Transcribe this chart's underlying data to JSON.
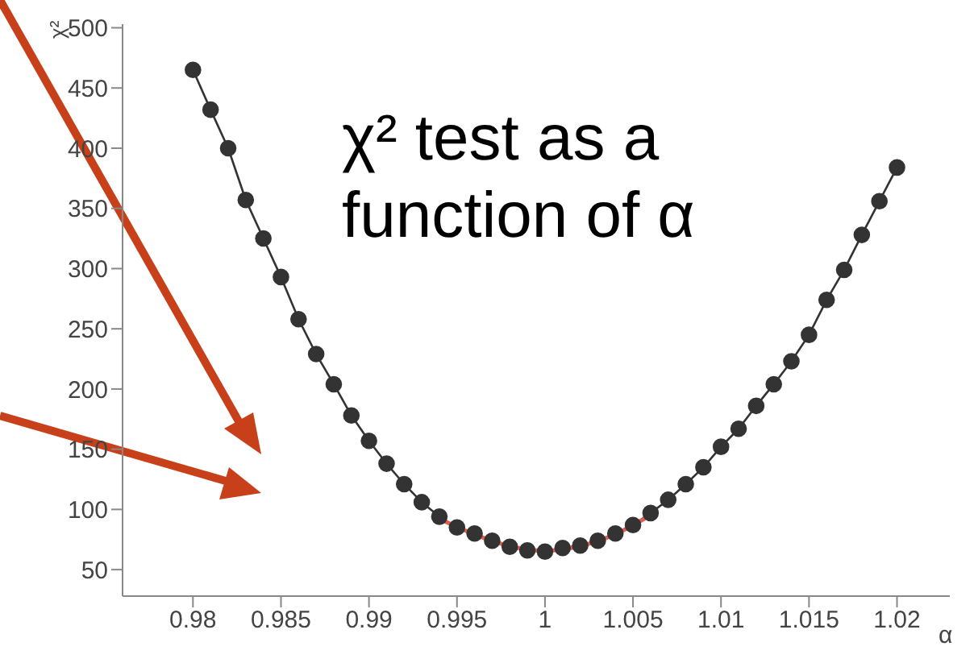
{
  "chart_data": {
    "type": "line",
    "xlabel": "α",
    "ylabel": "χ²",
    "annotations": [
      "χ² test as a function of α"
    ],
    "xlim": [
      0.976,
      1.023
    ],
    "ylim": [
      28,
      503
    ],
    "xticks": [
      0.98,
      0.985,
      0.99,
      0.995,
      1,
      1.005,
      1.01,
      1.015,
      1.02
    ],
    "yticks": [
      50,
      100,
      150,
      200,
      250,
      300,
      350,
      400,
      450,
      500
    ],
    "grid": false,
    "marker": "circle",
    "line_style": "solid",
    "series": [
      {
        "color": "#333333",
        "x": [
          0.98,
          0.981,
          0.982,
          0.983,
          0.984,
          0.985,
          0.986,
          0.987,
          0.988,
          0.989,
          0.99,
          0.991,
          0.992,
          0.993,
          0.994,
          0.995,
          0.996,
          0.997,
          0.998,
          0.999,
          1,
          1.001,
          1.002,
          1.003,
          1.004,
          1.005,
          1.006,
          1.007,
          1.008,
          1.009,
          1.01,
          1.011,
          1.012,
          1.013,
          1.014,
          1.015,
          1.016,
          1.017,
          1.018,
          1.019,
          1.02
        ],
        "values": [
          465,
          432,
          400,
          357,
          325,
          293,
          258,
          229,
          204,
          178,
          157,
          138,
          121,
          106,
          94,
          85,
          80,
          74,
          69,
          66,
          65,
          68,
          70,
          74,
          80,
          87,
          97,
          108,
          121,
          135,
          152,
          167,
          186,
          204,
          223,
          245,
          274,
          299,
          328,
          356,
          384
        ]
      },
      {
        "color": "#e06050",
        "marker": "none",
        "x": [
          0.994,
          0.996,
          0.998,
          1,
          1.002,
          1.004,
          1.006
        ],
        "values": [
          92,
          79,
          69,
          65,
          69,
          79,
          95
        ]
      }
    ]
  }
}
